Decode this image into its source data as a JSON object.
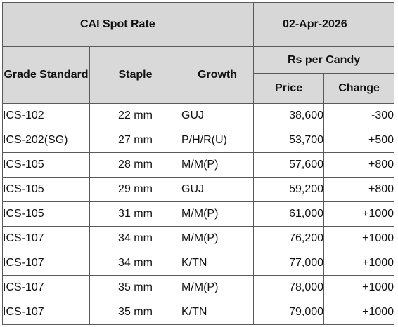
{
  "title": "CAI Spot Rate",
  "date": "02-Apr-2026",
  "headers": {
    "grade": "Grade Standard",
    "staple": "Staple",
    "growth": "Growth",
    "group": "Rs per Candy",
    "price": "Price",
    "change": "Change"
  },
  "rows": [
    {
      "grade": "ICS-102",
      "staple": "22 mm",
      "growth": "GUJ",
      "price": "38,600",
      "change": "-300"
    },
    {
      "grade": "ICS-202(SG)",
      "staple": "27 mm",
      "growth": "P/H/R(U)",
      "price": "53,700",
      "change": "+500"
    },
    {
      "grade": "ICS-105",
      "staple": "28 mm",
      "growth": "M/M(P)",
      "price": "57,600",
      "change": "+800"
    },
    {
      "grade": "ICS-105",
      "staple": "29 mm",
      "growth": "GUJ",
      "price": "59,200",
      "change": "+800"
    },
    {
      "grade": "ICS-105",
      "staple": "31 mm",
      "growth": "M/M(P)",
      "price": "61,000",
      "change": "+1000"
    },
    {
      "grade": "ICS-107",
      "staple": "34 mm",
      "growth": "M/M(P)",
      "price": "76,200",
      "change": "+1000"
    },
    {
      "grade": "ICS-107",
      "staple": "34 mm",
      "growth": "K/TN",
      "price": "77,000",
      "change": "+1000"
    },
    {
      "grade": "ICS-107",
      "staple": "35 mm",
      "growth": "M/M(P)",
      "price": "78,000",
      "change": "+1000"
    },
    {
      "grade": "ICS-107",
      "staple": "35 mm",
      "growth": "K/TN",
      "price": "79,000",
      "change": "+1000"
    }
  ]
}
